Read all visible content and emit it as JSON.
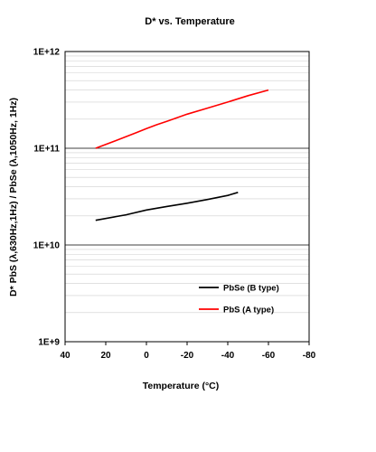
{
  "chart_data": {
    "type": "line",
    "title": "D* vs. Temperature",
    "xlabel": "Temperature (°C)",
    "ylabel": "D* PbS (λ,630Hz,1Hz) / PbSe (λ,1050Hz, 1Hz)",
    "x_ticks": [
      40,
      20,
      0,
      -20,
      -40,
      -60,
      -80
    ],
    "x_tick_labels": [
      "40",
      "20",
      "0",
      "-20",
      "-40",
      "-60",
      "-80"
    ],
    "xlim": [
      40,
      -80
    ],
    "x_reversed": true,
    "y_scale": "log",
    "ylim": [
      1000000000.0,
      1000000000000.0
    ],
    "y_ticks": [
      1000000000.0,
      10000000000.0,
      100000000000.0,
      1000000000000.0
    ],
    "y_tick_labels": [
      "1E+9",
      "1E+10",
      "1E+11",
      "1E+12"
    ],
    "grid": true,
    "legend_position": "bottom-right",
    "series": [
      {
        "name": "PbSe (B type)",
        "color": "#000000",
        "x": [
          25,
          10,
          0,
          -10,
          -20,
          -30,
          -40,
          -45
        ],
        "y": [
          18000000000.0,
          20500000000.0,
          23000000000.0,
          25000000000.0,
          27000000000.0,
          29500000000.0,
          32500000000.0,
          35000000000.0
        ]
      },
      {
        "name": "PbS (A type)",
        "color": "#ff0000",
        "x": [
          25,
          15,
          5,
          0,
          -5,
          -10,
          -20,
          -30,
          -40,
          -50,
          -60
        ],
        "y": [
          100000000000.0,
          120000000000.0,
          145000000000.0,
          160000000000.0,
          175000000000.0,
          190000000000.0,
          225000000000.0,
          260000000000.0,
          300000000000.0,
          350000000000.0,
          400000000000.0
        ]
      }
    ]
  }
}
